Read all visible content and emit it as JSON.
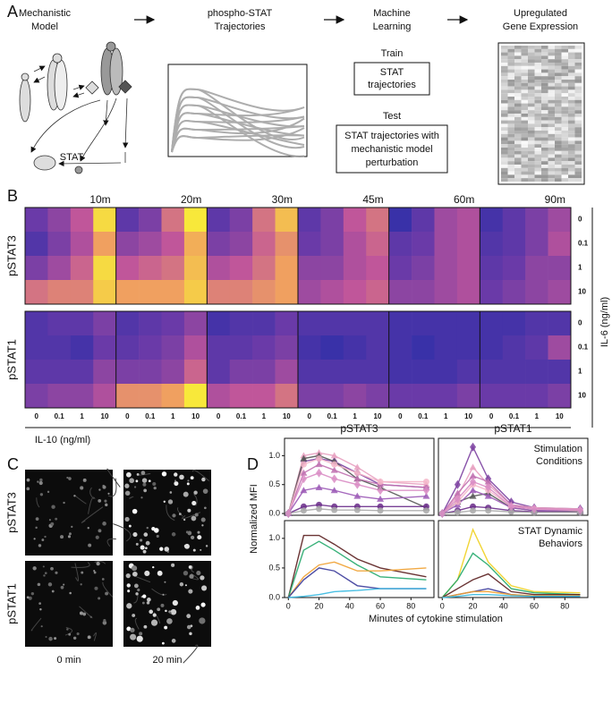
{
  "panels": [
    "A",
    "B",
    "C",
    "D"
  ],
  "panel_a": {
    "steps": [
      [
        "Mechanistic",
        "Model"
      ],
      [
        "phospho-STAT",
        "Trajectories"
      ],
      [
        "Machine",
        "Learning"
      ],
      [
        "Upregulated",
        "Gene Expression"
      ]
    ],
    "stat_label": "STAT",
    "train": "Train",
    "train_box": [
      "STAT",
      "trajectories"
    ],
    "test": "Test",
    "test_box": [
      "STAT trajectories with",
      "mechanistic model",
      "perturbation"
    ]
  },
  "heatmap": {
    "rows": [
      "pSTAT3",
      "pSTAT1"
    ],
    "times": [
      "10m",
      "20m",
      "30m",
      "45m",
      "60m",
      "90m"
    ],
    "il6_levels": [
      "0",
      "0.1",
      "1",
      "10"
    ],
    "il10_levels": [
      "0",
      "0.1",
      "1",
      "10"
    ],
    "il6_label": "IL-6 (ng/ml)",
    "il10_label": "IL-10 (ng/ml)",
    "values": [
      [
        [
          [
            0.25,
            0.35,
            0.5,
            0.95
          ],
          [
            0.15,
            0.3,
            0.45,
            0.75
          ],
          [
            0.3,
            0.4,
            0.55,
            0.95
          ],
          [
            0.6,
            0.65,
            0.65,
            0.9
          ]
        ],
        [
          [
            0.2,
            0.3,
            0.6,
            1.0
          ],
          [
            0.35,
            0.4,
            0.5,
            0.8
          ],
          [
            0.5,
            0.55,
            0.6,
            0.85
          ],
          [
            0.75,
            0.75,
            0.75,
            0.9
          ]
        ],
        [
          [
            0.2,
            0.3,
            0.6,
            0.85
          ],
          [
            0.3,
            0.35,
            0.55,
            0.7
          ],
          [
            0.45,
            0.5,
            0.6,
            0.75
          ],
          [
            0.65,
            0.65,
            0.7,
            0.75
          ]
        ],
        [
          [
            0.2,
            0.3,
            0.5,
            0.6
          ],
          [
            0.25,
            0.3,
            0.45,
            0.55
          ],
          [
            0.35,
            0.35,
            0.45,
            0.5
          ],
          [
            0.4,
            0.45,
            0.5,
            0.55
          ]
        ],
        [
          [
            0.05,
            0.2,
            0.4,
            0.45
          ],
          [
            0.2,
            0.25,
            0.4,
            0.45
          ],
          [
            0.25,
            0.3,
            0.4,
            0.45
          ],
          [
            0.35,
            0.35,
            0.4,
            0.45
          ]
        ],
        [
          [
            0.1,
            0.2,
            0.3,
            0.4
          ],
          [
            0.15,
            0.2,
            0.3,
            0.45
          ],
          [
            0.2,
            0.25,
            0.35,
            0.35
          ],
          [
            0.25,
            0.3,
            0.35,
            0.4
          ]
        ]
      ],
      [
        [
          [
            0.15,
            0.2,
            0.2,
            0.3
          ],
          [
            0.15,
            0.15,
            0.1,
            0.25
          ],
          [
            0.2,
            0.2,
            0.2,
            0.35
          ],
          [
            0.3,
            0.35,
            0.35,
            0.45
          ]
        ],
        [
          [
            0.15,
            0.2,
            0.25,
            0.35
          ],
          [
            0.2,
            0.25,
            0.3,
            0.45
          ],
          [
            0.3,
            0.3,
            0.35,
            0.55
          ],
          [
            0.7,
            0.7,
            0.75,
            1.0
          ]
        ],
        [
          [
            0.1,
            0.15,
            0.15,
            0.25
          ],
          [
            0.2,
            0.2,
            0.25,
            0.3
          ],
          [
            0.2,
            0.3,
            0.3,
            0.4
          ],
          [
            0.45,
            0.5,
            0.5,
            0.6
          ]
        ],
        [
          [
            0.15,
            0.15,
            0.15,
            0.15
          ],
          [
            0.1,
            0.05,
            0.1,
            0.15
          ],
          [
            0.15,
            0.15,
            0.15,
            0.15
          ],
          [
            0.3,
            0.3,
            0.35,
            0.3
          ]
        ],
        [
          [
            0.1,
            0.1,
            0.1,
            0.1
          ],
          [
            0.1,
            0.05,
            0.1,
            0.1
          ],
          [
            0.1,
            0.1,
            0.1,
            0.15
          ],
          [
            0.25,
            0.25,
            0.25,
            0.3
          ]
        ],
        [
          [
            0.1,
            0.1,
            0.15,
            0.15
          ],
          [
            0.1,
            0.15,
            0.2,
            0.4
          ],
          [
            0.15,
            0.15,
            0.15,
            0.15
          ],
          [
            0.25,
            0.25,
            0.25,
            0.3
          ]
        ]
      ]
    ]
  },
  "panel_c": {
    "rows": [
      "pSTAT3",
      "pSTAT1"
    ],
    "columns": [
      "0 min",
      "20 min"
    ]
  },
  "chart_data": [
    {
      "type": "line",
      "title": "pSTAT3",
      "ylabel": "Normalized MFI",
      "x": [
        0,
        10,
        20,
        30,
        45,
        60,
        90
      ],
      "xlim": [
        -2.5,
        95
      ],
      "ylim": [
        -0.03,
        1.3
      ],
      "yticks": [
        {
          "value": 0,
          "label": "0.0"
        },
        {
          "value": 0.5,
          "label": "0.5"
        },
        {
          "value": 1,
          "label": "1.0"
        }
      ],
      "series": [
        {
          "color": "#7b3fa0",
          "marker": "diamond",
          "values": [
            0,
            0.9,
            0.95,
            0.9,
            0.7,
            0.5,
            0.45
          ]
        },
        {
          "color": "#e8a0c0",
          "marker": "triangle",
          "values": [
            0,
            1.0,
            1.05,
            1.0,
            0.8,
            0.55,
            0.5
          ]
        },
        {
          "color": "#555555",
          "marker": "triangle",
          "values": [
            0,
            0.95,
            1.0,
            0.9,
            0.6,
            0.45,
            0.1
          ]
        },
        {
          "color": "#c070b0",
          "marker": "triangle",
          "values": [
            0,
            0.7,
            0.85,
            0.75,
            0.6,
            0.5,
            0.45
          ]
        },
        {
          "color": "#9b59b6",
          "marker": "triangle",
          "values": [
            0,
            0.4,
            0.45,
            0.4,
            0.3,
            0.25,
            0.3
          ]
        },
        {
          "color": "#f4b6c9",
          "marker": "circle",
          "values": [
            0,
            0.85,
            0.95,
            0.85,
            0.7,
            0.55,
            0.55
          ]
        },
        {
          "color": "#6a2c8a",
          "marker": "circle",
          "values": [
            0,
            0.12,
            0.15,
            0.12,
            0.12,
            0.12,
            0.12
          ]
        },
        {
          "color": "#aaaaaa",
          "marker": "circle",
          "values": [
            0,
            0.05,
            0.08,
            0.06,
            0.06,
            0.05,
            0.05
          ]
        },
        {
          "color": "#d98cc4",
          "marker": "diamond",
          "values": [
            0,
            0.6,
            0.7,
            0.6,
            0.5,
            0.4,
            0.4
          ]
        }
      ]
    },
    {
      "type": "line",
      "title": "pSTAT1",
      "annotation": [
        "Stimulation",
        "Conditions"
      ],
      "x": [
        0,
        10,
        20,
        30,
        45,
        60,
        90
      ],
      "xlim": [
        -2.5,
        95
      ],
      "ylim": [
        -0.03,
        1.3
      ],
      "series": [
        {
          "color": "#7b3fa0",
          "marker": "diamond",
          "values": [
            0,
            0.5,
            1.15,
            0.6,
            0.2,
            0.1,
            0.08
          ]
        },
        {
          "color": "#e8a0c0",
          "marker": "triangle",
          "values": [
            0,
            0.3,
            0.8,
            0.5,
            0.15,
            0.1,
            0.08
          ]
        },
        {
          "color": "#555555",
          "marker": "triangle",
          "values": [
            0,
            0.2,
            0.3,
            0.35,
            0.1,
            0.05,
            0.03
          ]
        },
        {
          "color": "#c070b0",
          "marker": "triangle",
          "values": [
            0,
            0.35,
            0.65,
            0.55,
            0.15,
            0.08,
            0.06
          ]
        },
        {
          "color": "#9b59b6",
          "marker": "triangle",
          "values": [
            0,
            0.15,
            0.4,
            0.3,
            0.1,
            0.05,
            0.05
          ]
        },
        {
          "color": "#f4b6c9",
          "marker": "circle",
          "values": [
            0,
            0.2,
            0.5,
            0.4,
            0.12,
            0.08,
            0.05
          ]
        },
        {
          "color": "#6a2c8a",
          "marker": "circle",
          "values": [
            0,
            0.05,
            0.12,
            0.1,
            0.05,
            0.03,
            0.02
          ]
        },
        {
          "color": "#aaaaaa",
          "marker": "circle",
          "values": [
            0,
            0.02,
            0.05,
            0.05,
            0.03,
            0.02,
            0.02
          ]
        },
        {
          "color": "#d98cc4",
          "marker": "diamond",
          "values": [
            0,
            0.25,
            0.55,
            0.45,
            0.12,
            0.08,
            0.06
          ]
        }
      ]
    },
    {
      "type": "line",
      "xlabel": "Minutes of cytokine stimulation",
      "x": [
        0,
        10,
        20,
        30,
        45,
        60,
        90
      ],
      "xlim": [
        -2.5,
        95
      ],
      "ylim": [
        0,
        1.3
      ],
      "xticks": [
        0,
        20,
        40,
        60,
        80
      ],
      "yticks": [
        {
          "value": 0,
          "label": "0.0"
        },
        {
          "value": 0.5,
          "label": "0.5"
        },
        {
          "value": 1,
          "label": "1.0"
        }
      ],
      "series": [
        {
          "color": "#5a1e1e",
          "values": [
            0,
            1.05,
            1.05,
            0.9,
            0.65,
            0.5,
            0.35
          ]
        },
        {
          "color": "#22a86a",
          "values": [
            0,
            0.8,
            0.95,
            0.8,
            0.55,
            0.35,
            0.3
          ]
        },
        {
          "color": "#f0a030",
          "values": [
            0,
            0.35,
            0.55,
            0.6,
            0.45,
            0.45,
            0.5
          ]
        },
        {
          "color": "#3a3a9a",
          "values": [
            0,
            0.3,
            0.5,
            0.45,
            0.2,
            0.15,
            0.15
          ]
        },
        {
          "color": "#35b8e0",
          "values": [
            0,
            0.02,
            0.05,
            0.1,
            0.12,
            0.15,
            0.15
          ]
        }
      ]
    },
    {
      "type": "line",
      "annotation": [
        "STAT Dynamic",
        "Behaviors"
      ],
      "x": [
        0,
        10,
        20,
        30,
        45,
        60,
        90
      ],
      "xlim": [
        -2.5,
        95
      ],
      "ylim": [
        0,
        1.3
      ],
      "xticks": [
        0,
        20,
        40,
        60,
        80
      ],
      "series": [
        {
          "color": "#f0d020",
          "values": [
            0,
            0.3,
            1.15,
            0.6,
            0.2,
            0.1,
            0.08
          ]
        },
        {
          "color": "#22a86a",
          "values": [
            0,
            0.3,
            0.75,
            0.55,
            0.15,
            0.08,
            0.05
          ]
        },
        {
          "color": "#5a1e1e",
          "values": [
            0,
            0.15,
            0.3,
            0.4,
            0.1,
            0.05,
            0.05
          ]
        },
        {
          "color": "#3a3a9a",
          "values": [
            0,
            0.05,
            0.1,
            0.15,
            0.05,
            0.02,
            0.02
          ]
        },
        {
          "color": "#f0a030",
          "values": [
            0,
            0.05,
            0.1,
            0.1,
            0.05,
            0.03,
            0.03
          ]
        },
        {
          "color": "#35b8e0",
          "values": [
            0,
            0.02,
            0.05,
            0.05,
            0.03,
            0.02,
            0.02
          ]
        }
      ]
    }
  ]
}
